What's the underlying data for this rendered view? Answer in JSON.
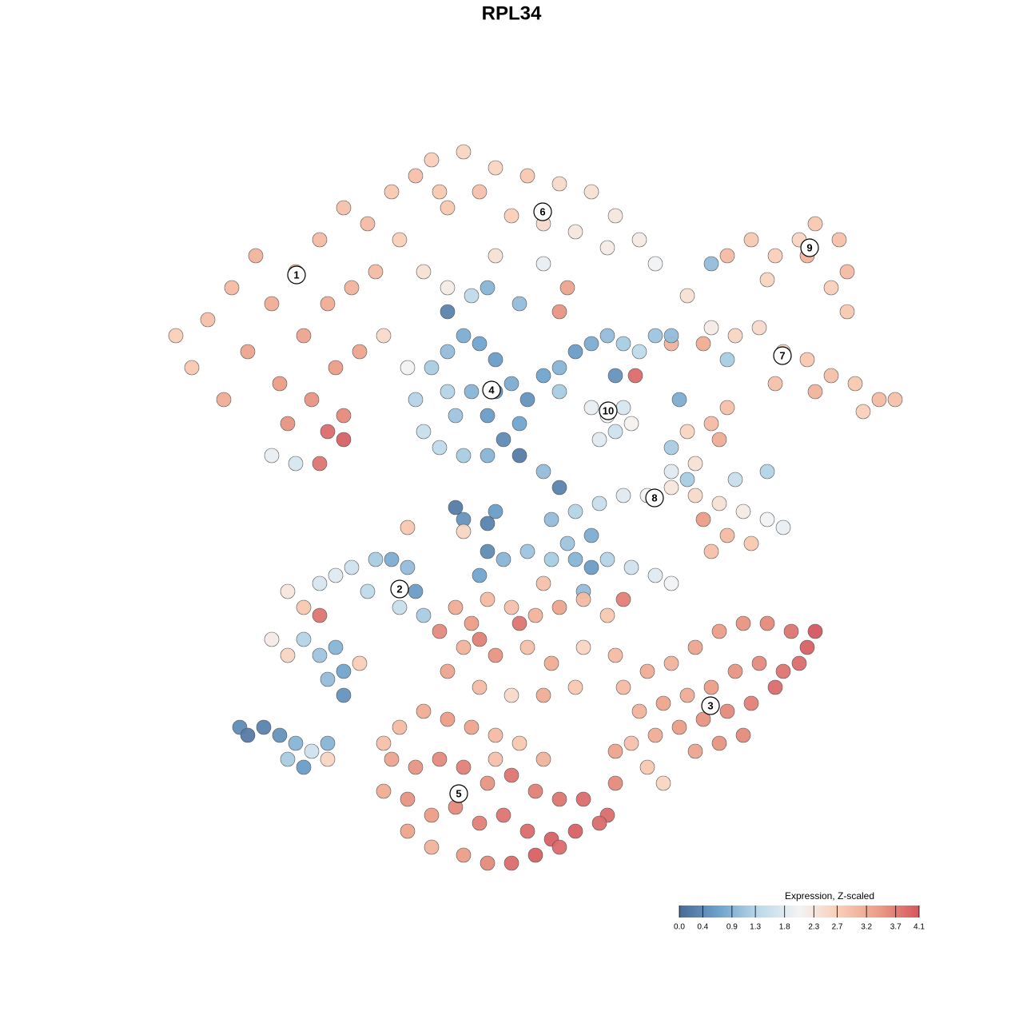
{
  "chart_data": {
    "type": "scatter",
    "title": "RPL34",
    "xlim": [
      -45,
      50
    ],
    "ylim": [
      -46,
      46
    ],
    "x": [
      -40,
      -38,
      -35,
      -32,
      -30,
      -27,
      -24,
      -21,
      -18,
      -15,
      -12,
      -9,
      -26,
      -23,
      -20,
      -17,
      -14,
      -11,
      -8,
      -33,
      -29,
      -25,
      -22,
      -19,
      -28,
      -24,
      -21,
      -23,
      -21,
      -30,
      -27,
      -42,
      -36,
      -16,
      -13,
      -10,
      -6,
      -2,
      2,
      6,
      10,
      13,
      16,
      -8,
      -4,
      0,
      4,
      8,
      12,
      -2,
      4,
      7,
      6,
      18,
      -3,
      1,
      -8,
      -5,
      27,
      30,
      33,
      36,
      38,
      41,
      42,
      40,
      37,
      25,
      42,
      32,
      22,
      25,
      28,
      31,
      34,
      37,
      40,
      43,
      46,
      48,
      20,
      24,
      27,
      33,
      38,
      44,
      -12,
      -10,
      -8,
      -6,
      -4,
      -2,
      0,
      2,
      -11,
      -9,
      -7,
      -5,
      -3,
      -1,
      1,
      -6,
      -3,
      -2,
      -8,
      4,
      6,
      8,
      10,
      12,
      14,
      16,
      18,
      6,
      13,
      20,
      15.5,
      21,
      10,
      12,
      14,
      11,
      13,
      15,
      20,
      22,
      23,
      20,
      25,
      27,
      26,
      5,
      8,
      11,
      14,
      17,
      20,
      23,
      26,
      29,
      32,
      34,
      30,
      27,
      25,
      22,
      28,
      32,
      10,
      7,
      24,
      -3,
      -6,
      -13,
      -7,
      6,
      4,
      1,
      -2,
      -6,
      -3,
      -1,
      2,
      5,
      8,
      10,
      12,
      15,
      18,
      20,
      -4,
      4,
      9,
      14,
      -28,
      -26,
      -24,
      -22,
      -20,
      -17,
      -15,
      -13,
      -12,
      -11,
      -14,
      -18,
      -24,
      -30,
      -28,
      -26,
      -24,
      -22,
      -21,
      -23,
      -19,
      -21,
      -34,
      -33,
      -31,
      -29,
      -27,
      -28,
      -26,
      -25,
      -23,
      -23,
      -7,
      -5,
      -3,
      0,
      3,
      6,
      9,
      12,
      -6,
      -2,
      2,
      5,
      9,
      13,
      -8,
      -4,
      0,
      4,
      8,
      -9,
      1,
      -4,
      14,
      17,
      20,
      23,
      26,
      29,
      32,
      35,
      37,
      38,
      16,
      19,
      22,
      25,
      28,
      31,
      34,
      36,
      15,
      18,
      21,
      24,
      27,
      30,
      33,
      17,
      19,
      23,
      26,
      29,
      13,
      -14,
      -11,
      -8,
      -5,
      -2,
      1,
      -15,
      -12,
      -9,
      -6,
      -3,
      0,
      3,
      6,
      9,
      12,
      -16,
      -13,
      -10,
      -7,
      -4,
      -1,
      2,
      5,
      8,
      11,
      -10,
      -6,
      -3,
      0,
      3,
      6,
      -16,
      -13,
      13,
      -2,
      4
    ],
    "y": [
      18,
      24,
      28,
      32,
      26,
      30,
      34,
      38,
      36,
      40,
      42,
      40,
      22,
      26,
      28,
      30,
      34,
      30,
      28,
      20,
      16,
      14,
      18,
      20,
      11,
      6,
      12,
      10,
      9,
      7,
      6,
      22,
      14,
      22,
      18,
      44,
      45,
      43,
      42,
      41,
      40,
      37,
      34,
      38,
      40,
      37,
      36,
      35,
      33,
      32,
      31,
      28,
      25,
      31,
      28,
      26,
      25,
      27,
      32,
      34,
      32,
      34,
      36,
      34,
      30,
      28,
      32,
      31,
      25,
      29,
      27,
      23,
      22,
      23,
      20,
      19,
      17,
      16,
      14,
      14,
      21,
      21,
      19,
      16,
      15,
      12.5,
      14,
      18,
      20,
      22,
      21,
      19,
      16,
      14,
      10,
      8,
      12,
      15,
      12,
      9,
      11,
      7,
      7,
      15,
      15,
      17,
      18,
      20,
      21,
      22,
      21,
      20,
      22,
      15,
      17,
      22,
      17,
      14,
      13,
      12,
      13,
      9,
      10,
      11,
      8,
      10,
      6,
      5,
      11,
      13,
      9,
      -1,
      0,
      1,
      2,
      2,
      3,
      2,
      1,
      0,
      -1,
      -2,
      -4,
      -3,
      -5,
      4,
      4,
      5,
      -3,
      -4,
      -1,
      -1.5,
      -1,
      -2,
      0.5,
      3,
      5,
      7,
      0,
      -2.5,
      -5,
      -6,
      -5,
      -6,
      -6,
      -7,
      -6,
      -7,
      -8,
      -9,
      -8,
      -9,
      -10,
      -11,
      -10,
      -12,
      -9,
      -8,
      -7,
      -6,
      -6,
      -7,
      -10,
      -13,
      -12,
      -10,
      -13,
      -16,
      -18,
      -16,
      -18,
      -17,
      -20,
      -21,
      -19,
      -23,
      -27,
      -28,
      -27,
      -28,
      -29,
      -31,
      -32,
      -30,
      -29,
      -31,
      -12,
      -14,
      -11,
      -12,
      -13,
      -12,
      -11,
      -13,
      -17,
      -18,
      -17,
      -19,
      -17,
      -18,
      -20,
      -22,
      -23,
      -23,
      -22,
      -15,
      -14,
      -16,
      -22,
      -20,
      -19,
      -17,
      -15,
      -14,
      -14,
      -15,
      -17,
      -15,
      -25,
      -24,
      -23,
      -22,
      -20,
      -19,
      -20,
      -19,
      -29,
      -28,
      -27,
      -26,
      -25,
      -24,
      -22,
      -32,
      -34,
      -30,
      -29,
      -28,
      -30,
      -27,
      -25,
      -26,
      -27,
      -28,
      -29,
      -31,
      -32,
      -31,
      -32,
      -34,
      -33,
      -35,
      -36,
      -36,
      -38,
      -35,
      -36,
      -38,
      -37,
      -39,
      -38,
      -40,
      -41,
      -40,
      -39,
      -42,
      -43,
      -44,
      -44,
      -43,
      -42,
      -29,
      -40,
      -34,
      -31,
      -31
    ],
    "values": [
      2.8,
      2.9,
      3.0,
      3.1,
      3.2,
      3.1,
      3.0,
      2.9,
      3.0,
      2.8,
      2.9,
      2.8,
      3.3,
      3.2,
      3.1,
      3.0,
      2.7,
      2.4,
      2.2,
      3.3,
      3.4,
      3.5,
      3.4,
      3.3,
      3.5,
      3.8,
      3.6,
      3.9,
      4.0,
      1.9,
      1.7,
      2.7,
      3.2,
      2.5,
      2.0,
      2.7,
      2.6,
      2.6,
      2.8,
      2.5,
      2.4,
      2.3,
      2.2,
      2.8,
      2.9,
      2.7,
      2.5,
      2.3,
      2.2,
      2.4,
      1.9,
      3.3,
      3.5,
      2.0,
      0.9,
      1.0,
      0.3,
      1.4,
      3.0,
      2.8,
      2.7,
      2.6,
      2.8,
      2.9,
      3.0,
      2.7,
      3.1,
      1.0,
      2.8,
      2.6,
      2.4,
      2.2,
      2.6,
      2.5,
      2.6,
      2.8,
      2.9,
      2.8,
      3.0,
      2.9,
      3.1,
      3.2,
      1.2,
      2.9,
      3.1,
      2.7,
      1.3,
      1.2,
      1.0,
      0.8,
      0.7,
      0.6,
      0.8,
      0.5,
      1.5,
      1.4,
      1.1,
      0.9,
      0.6,
      0.4,
      0.7,
      1.2,
      0.9,
      0.5,
      1.3,
      0.7,
      0.9,
      0.6,
      0.8,
      1.0,
      1.2,
      1.4,
      1.1,
      1.2,
      0.5,
      1.0,
      3.9,
      0.8,
      1.9,
      2.0,
      1.7,
      1.8,
      1.6,
      2.1,
      1.2,
      2.6,
      2.4,
      1.8,
      3.0,
      2.9,
      3.2,
      1.0,
      1.3,
      1.5,
      1.8,
      2.0,
      2.3,
      2.5,
      2.4,
      2.2,
      2.0,
      1.9,
      2.8,
      3.0,
      2.9,
      1.2,
      1.5,
      1.3,
      0.8,
      1.1,
      3.4,
      0.3,
      0.5,
      2.8,
      0.2,
      0.3,
      1.0,
      0.2,
      0.6,
      2.6,
      0.4,
      0.9,
      1.1,
      1.2,
      0.9,
      0.6,
      1.3,
      1.6,
      1.8,
      2.0,
      0.7,
      2.9,
      1.0,
      3.7,
      2.3,
      2.8,
      1.7,
      1.8,
      1.6,
      1.2,
      0.8,
      1.0,
      0.6,
      1.2,
      1.5,
      1.4,
      3.8,
      2.2,
      2.6,
      1.3,
      1.1,
      0.9,
      0.7,
      1.0,
      2.7,
      0.5,
      0.4,
      0.2,
      0.3,
      0.5,
      0.9,
      1.2,
      0.6,
      1.6,
      0.9,
      2.6,
      3.2,
      3.4,
      3.0,
      2.9,
      3.1,
      3.3,
      3.0,
      2.8,
      3.1,
      3.5,
      2.9,
      3.2,
      2.6,
      3.0,
      3.3,
      3.0,
      2.5,
      3.2,
      2.8,
      3.6,
      3.8,
      3.7,
      3.0,
      3.2,
      3.1,
      3.3,
      3.4,
      3.5,
      3.6,
      3.8,
      4.0,
      4.1,
      3.1,
      3.3,
      3.2,
      3.4,
      3.5,
      3.6,
      3.8,
      3.9,
      2.9,
      3.2,
      3.4,
      3.5,
      3.6,
      3.7,
      3.9,
      2.8,
      2.6,
      3.3,
      3.5,
      3.6,
      3.3,
      3.0,
      3.2,
      3.4,
      3.3,
      3.0,
      2.8,
      3.3,
      3.5,
      3.6,
      3.7,
      3.5,
      3.8,
      3.7,
      3.8,
      3.9,
      3.9,
      3.2,
      3.5,
      3.4,
      3.6,
      3.7,
      3.8,
      3.9,
      4.0,
      4.0,
      3.9,
      3.1,
      3.4,
      3.6,
      3.9,
      4.0,
      3.9,
      2.9,
      3.3,
      3.6,
      2.9,
      3.1
    ],
    "clusters": [
      {
        "label": "1",
        "x": -26.9,
        "y": 29.6
      },
      {
        "label": "2",
        "x": -14,
        "y": -9.7
      },
      {
        "label": "3",
        "x": 24.9,
        "y": -24.3
      },
      {
        "label": "4",
        "x": -2.5,
        "y": 15.2
      },
      {
        "label": "5",
        "x": -6.6,
        "y": -35.3
      },
      {
        "label": "6",
        "x": 3.9,
        "y": 37.5
      },
      {
        "label": "7",
        "x": 33.9,
        "y": 19.5
      },
      {
        "label": "8",
        "x": 17.9,
        "y": 1.7
      },
      {
        "label": "9",
        "x": 37.3,
        "y": 33
      },
      {
        "label": "10",
        "x": 12.1,
        "y": 12.6
      }
    ],
    "colorbar_title": "Expression, Z-scaled",
    "clim": [
      0,
      4.1
    ],
    "colors": [
      "#4a6a97",
      "#6fa3cc",
      "#bcd9ea",
      "#f4f4f4",
      "#f9cdb6",
      "#eb9c86",
      "#d4575f"
    ],
    "colorbar_ticks": [
      {
        "value": 0,
        "label": "0.0"
      },
      0.4,
      0.9,
      1.3,
      1.8,
      2.3,
      2.7,
      3.2,
      3.7,
      4.1
    ]
  }
}
